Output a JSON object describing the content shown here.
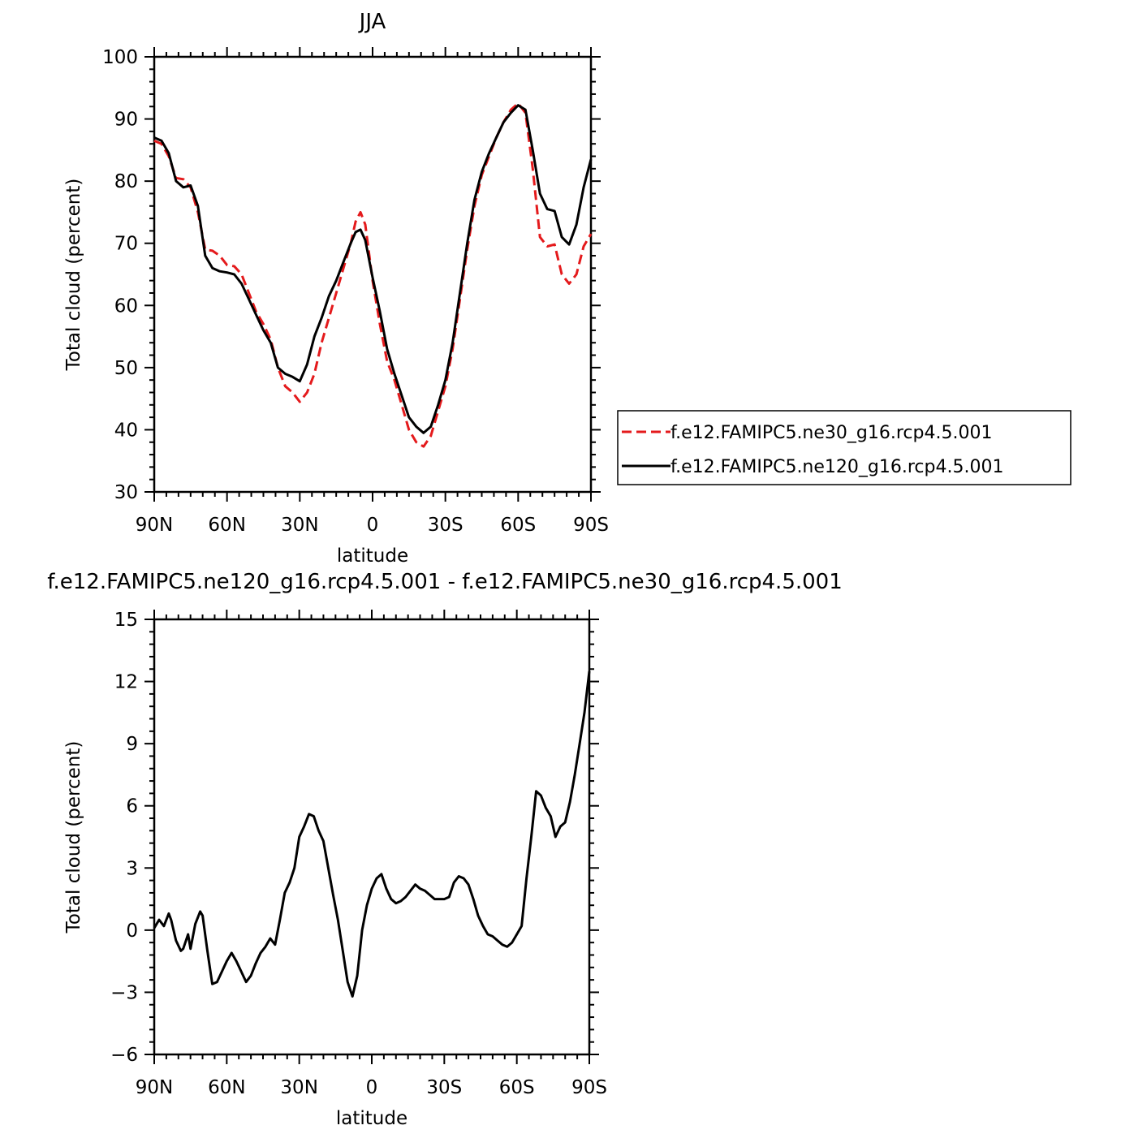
{
  "chart_data": [
    {
      "type": "line",
      "title": "JJA",
      "xlabel": "latitude",
      "ylabel": "Total cloud (percent)",
      "xlim": [
        90,
        -90
      ],
      "ylim": [
        30,
        100
      ],
      "x_ticks": [
        90,
        60,
        30,
        0,
        -30,
        -60,
        -90
      ],
      "x_tick_labels": [
        "90N",
        "60N",
        "30N",
        "0",
        "30S",
        "60S",
        "90S"
      ],
      "y_ticks": [
        30,
        40,
        50,
        60,
        70,
        80,
        90,
        100
      ],
      "y_tick_labels": [
        "30",
        "40",
        "50",
        "60",
        "70",
        "80",
        "90",
        "100"
      ],
      "legend_position": "right",
      "series": [
        {
          "name": "f.e12.FAMIPC5.ne30_g16.rcp4.5.001",
          "color": "#e41a1c",
          "dash": "dashed",
          "x": [
            90,
            87,
            84,
            81,
            78,
            75,
            72,
            69,
            66,
            63,
            60,
            57,
            54,
            51,
            48,
            45,
            42,
            39,
            36,
            33,
            30,
            27,
            24,
            21,
            18,
            15,
            12,
            9,
            7,
            5,
            3,
            0,
            -3,
            -6,
            -9,
            -12,
            -15,
            -18,
            -21,
            -24,
            -27,
            -30,
            -33,
            -36,
            -39,
            -42,
            -45,
            -48,
            -51,
            -54,
            -57,
            -60,
            -63,
            -66,
            -69,
            -72,
            -75,
            -78,
            -81,
            -84,
            -87,
            -90
          ],
          "values": [
            86.5,
            86.0,
            84.0,
            80.5,
            80.3,
            79.0,
            75.0,
            69.0,
            68.8,
            68.0,
            66.5,
            66.3,
            65.0,
            62.0,
            59.0,
            57.0,
            54.5,
            50.0,
            47.0,
            46.0,
            44.5,
            46.0,
            49.0,
            54.0,
            58.0,
            62.0,
            66.0,
            70.0,
            73.5,
            75.0,
            73.0,
            64.0,
            57.0,
            51.0,
            48.0,
            44.0,
            40.0,
            38.0,
            37.3,
            39.0,
            43.0,
            47.0,
            53.0,
            61.0,
            69.0,
            76.0,
            81.0,
            84.0,
            87.0,
            89.5,
            91.5,
            92.5,
            91.0,
            82.0,
            71.0,
            69.5,
            69.8,
            65.0,
            63.5,
            65.0,
            69.5,
            71.5
          ]
        },
        {
          "name": "f.e12.FAMIPC5.ne120_g16.rcp4.5.001",
          "color": "#000000",
          "dash": "solid",
          "x": [
            90,
            87,
            84,
            81,
            78,
            75,
            72,
            69,
            66,
            63,
            60,
            57,
            54,
            51,
            48,
            45,
            42,
            39,
            36,
            33,
            30,
            27,
            24,
            21,
            18,
            15,
            12,
            9,
            7,
            5,
            3,
            0,
            -3,
            -6,
            -9,
            -12,
            -15,
            -18,
            -21,
            -24,
            -27,
            -30,
            -33,
            -36,
            -39,
            -42,
            -45,
            -48,
            -51,
            -54,
            -57,
            -60,
            -63,
            -66,
            -69,
            -72,
            -75,
            -78,
            -81,
            -84,
            -87,
            -90
          ],
          "values": [
            87.0,
            86.5,
            84.5,
            80.0,
            79.0,
            79.3,
            76.0,
            68.0,
            66.0,
            65.5,
            65.3,
            65.0,
            63.5,
            61.0,
            58.5,
            56.0,
            54.0,
            50.0,
            49.0,
            48.5,
            47.8,
            50.5,
            55.0,
            58.0,
            61.5,
            64.0,
            67.0,
            70.0,
            71.8,
            72.2,
            70.5,
            64.5,
            59.0,
            53.0,
            49.0,
            45.5,
            42.0,
            40.5,
            39.5,
            40.5,
            44.0,
            48.0,
            54.0,
            62.0,
            70.0,
            77.0,
            81.5,
            84.5,
            87.0,
            89.5,
            91.0,
            92.2,
            91.5,
            85.0,
            78.0,
            75.5,
            75.2,
            71.0,
            69.8,
            73.0,
            79.0,
            83.5
          ]
        }
      ]
    },
    {
      "type": "line",
      "title": "f.e12.FAMIPC5.ne120_g16.rcp4.5.001 - f.e12.FAMIPC5.ne30_g16.rcp4.5.001",
      "xlabel": "latitude",
      "ylabel": "Total cloud (percent)",
      "xlim": [
        90,
        -90
      ],
      "ylim": [
        -6,
        15
      ],
      "x_ticks": [
        90,
        60,
        30,
        0,
        -30,
        -60,
        -90
      ],
      "x_tick_labels": [
        "90N",
        "60N",
        "30N",
        "0",
        "30S",
        "60S",
        "90S"
      ],
      "y_ticks": [
        -6,
        -3,
        0,
        3,
        6,
        9,
        12,
        15
      ],
      "y_tick_labels": [
        "−6",
        "−3",
        "0",
        "3",
        "6",
        "9",
        "12",
        "15"
      ],
      "series": [
        {
          "color": "#000000",
          "dash": "solid",
          "x": [
            90,
            88,
            86,
            84,
            83,
            81,
            79,
            78,
            76,
            75,
            73,
            71,
            70,
            68,
            66,
            64,
            62,
            60,
            58,
            56,
            54,
            52,
            50,
            48,
            46,
            44,
            42,
            40,
            38,
            36,
            34,
            32,
            30,
            28,
            26,
            24,
            22,
            20,
            18,
            16,
            14,
            12,
            10,
            8,
            6,
            4,
            2,
            0,
            -2,
            -4,
            -6,
            -8,
            -10,
            -12,
            -14,
            -16,
            -18,
            -20,
            -22,
            -24,
            -26,
            -28,
            -30,
            -32,
            -34,
            -36,
            -38,
            -40,
            -42,
            -44,
            -46,
            -48,
            -50,
            -52,
            -54,
            -56,
            -58,
            -60,
            -62,
            -64,
            -66,
            -68,
            -70,
            -72,
            -74,
            -76,
            -78,
            -80,
            -82,
            -84,
            -86,
            -88,
            -89,
            -90
          ],
          "values": [
            0.1,
            0.5,
            0.2,
            0.8,
            0.5,
            -0.5,
            -1.0,
            -0.9,
            -0.2,
            -0.9,
            0.3,
            0.9,
            0.7,
            -1.0,
            -2.6,
            -2.5,
            -2.0,
            -1.5,
            -1.1,
            -1.5,
            -2.0,
            -2.5,
            -2.2,
            -1.6,
            -1.1,
            -0.8,
            -0.4,
            -0.7,
            0.5,
            1.8,
            2.3,
            3.0,
            4.5,
            5.0,
            5.6,
            5.5,
            4.8,
            4.3,
            3.0,
            1.7,
            0.5,
            -1.0,
            -2.5,
            -3.2,
            -2.2,
            0.0,
            1.2,
            2.0,
            2.5,
            2.7,
            2.0,
            1.5,
            1.3,
            1.4,
            1.6,
            1.9,
            2.2,
            2.0,
            1.9,
            1.7,
            1.5,
            1.5,
            1.5,
            1.6,
            2.3,
            2.6,
            2.5,
            2.2,
            1.5,
            0.7,
            0.2,
            -0.2,
            -0.3,
            -0.5,
            -0.7,
            -0.8,
            -0.6,
            -0.2,
            0.2,
            2.5,
            4.5,
            6.7,
            6.5,
            5.9,
            5.5,
            4.5,
            5.0,
            5.2,
            6.2,
            7.5,
            9.0,
            10.5,
            11.5,
            12.5
          ]
        }
      ]
    }
  ],
  "legend": {
    "items": [
      {
        "label": "f.e12.FAMIPC5.ne30_g16.rcp4.5.001",
        "color": "#e41a1c",
        "dash": "dashed"
      },
      {
        "label": "f.e12.FAMIPC5.ne120_g16.rcp4.5.001",
        "color": "#000000",
        "dash": "solid"
      }
    ]
  }
}
